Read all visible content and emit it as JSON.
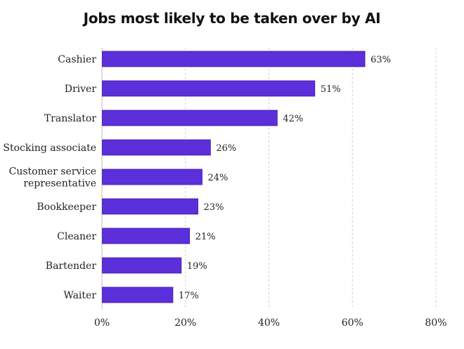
{
  "chart_data": {
    "type": "bar",
    "orientation": "horizontal",
    "title": "Jobs most likely to be taken over by AI",
    "categories": [
      "Cashier",
      "Driver",
      "Translator",
      "Stocking associate",
      "Customer service representative",
      "Bookkeeper",
      "Cleaner",
      "Bartender",
      "Waiter"
    ],
    "category_lines": [
      [
        "Cashier"
      ],
      [
        "Driver"
      ],
      [
        "Translator"
      ],
      [
        "Stocking associate"
      ],
      [
        "Customer service",
        "representative"
      ],
      [
        "Bookkeeper"
      ],
      [
        "Cleaner"
      ],
      [
        "Bartender"
      ],
      [
        "Waiter"
      ]
    ],
    "values": [
      63,
      51,
      42,
      26,
      24,
      23,
      21,
      19,
      17
    ],
    "value_labels": [
      "63%",
      "51%",
      "42%",
      "26%",
      "24%",
      "23%",
      "21%",
      "19%",
      "17%"
    ],
    "xlim": [
      0,
      80
    ],
    "xticks": [
      0,
      20,
      40,
      60,
      80
    ],
    "xtick_labels": [
      "0%",
      "20%",
      "40%",
      "60%",
      "80%"
    ],
    "xlabel": "",
    "ylabel": "",
    "grid": "vertical dashed",
    "colors": {
      "bar": "#5b2fd9",
      "bar_stroke": "#3f1aa8"
    }
  }
}
